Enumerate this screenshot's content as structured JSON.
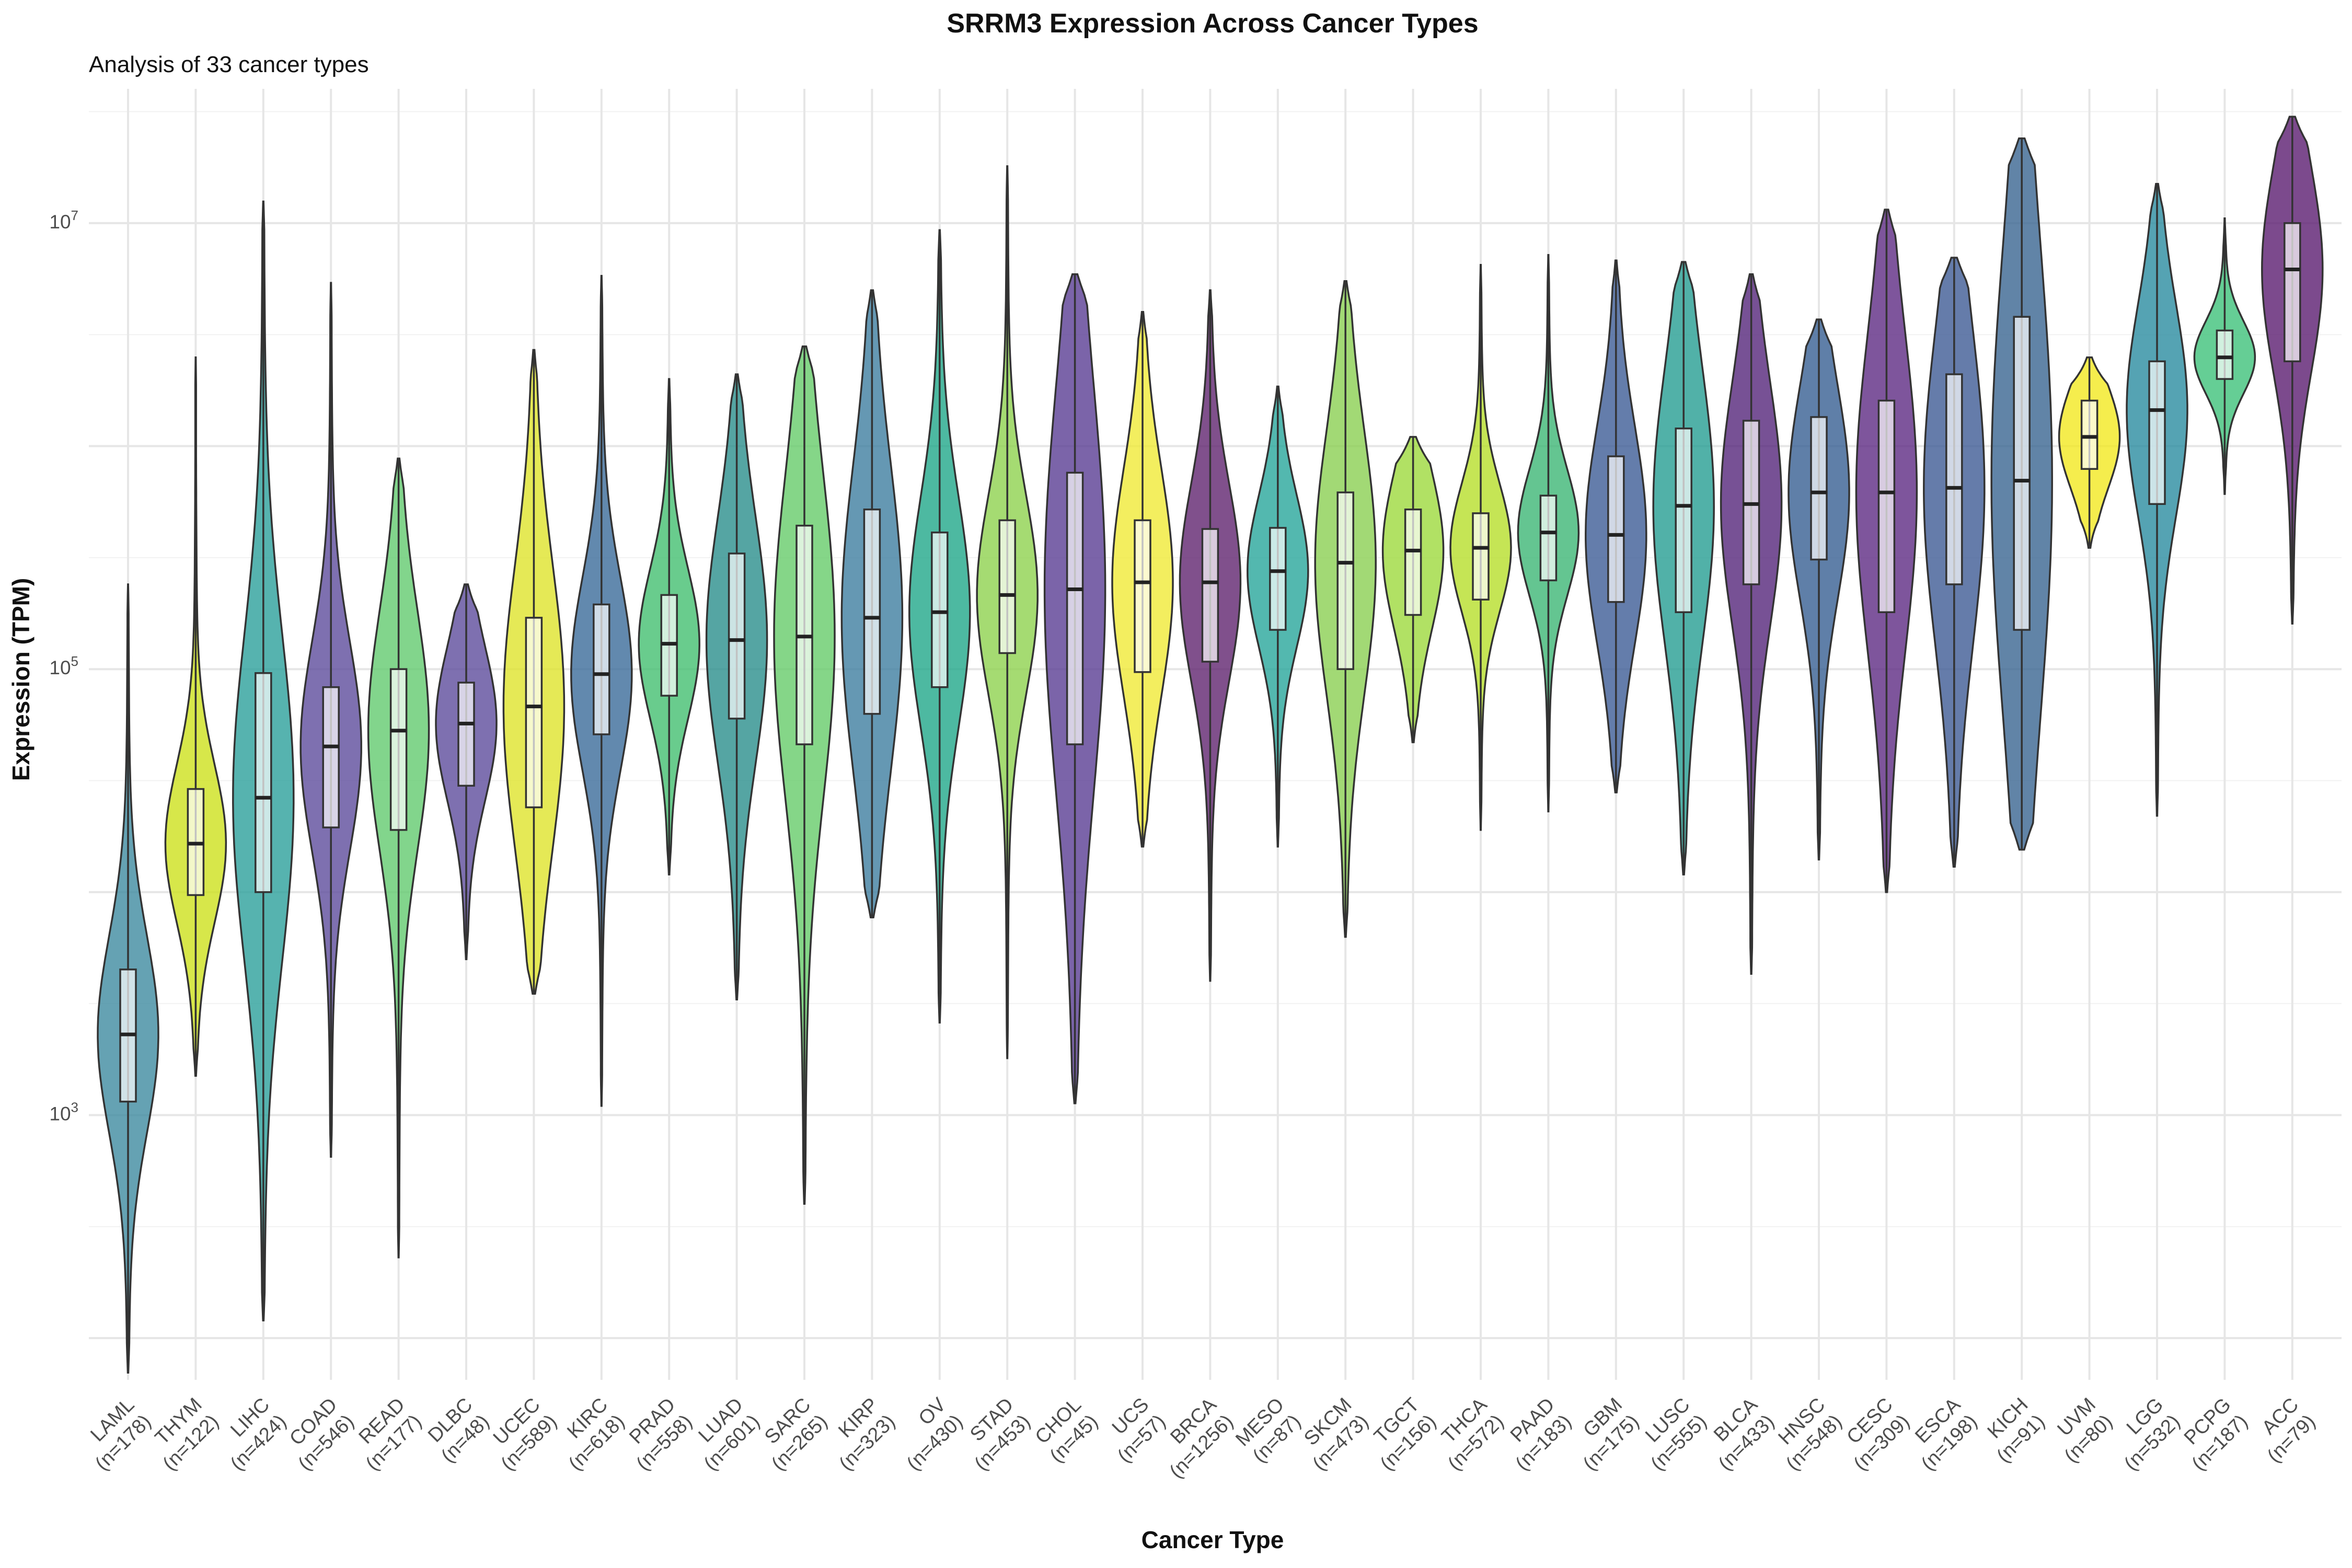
{
  "chart_data": {
    "type": "violin",
    "title": "SRRM3 Expression Across Cancer Types",
    "subtitle": "Analysis of 33 cancer types",
    "xlabel": "Cancer Type",
    "ylabel": "Expression (TPM)",
    "y_scale": "log10",
    "ylim": [
      65,
      40000000
    ],
    "y_ticks": [
      {
        "value": 1000,
        "base": "10",
        "exp": "3"
      },
      {
        "value": 100000,
        "base": "10",
        "exp": "5"
      },
      {
        "value": 10000000,
        "base": "10",
        "exp": "7"
      }
    ],
    "grid": true,
    "legend": "none",
    "categories": [
      {
        "name": "LAML",
        "n": "(n=178)",
        "color": "#3e8ba0",
        "min": 70,
        "q1": 1150,
        "median": 2300,
        "q3": 4500,
        "max": 240000
      },
      {
        "name": "THYM",
        "n": "(n=122)",
        "color": "#cde11d",
        "min": 1500,
        "q1": 9700,
        "median": 16500,
        "q3": 29000,
        "max": 2500000
      },
      {
        "name": "LIHC",
        "n": "(n=424)",
        "color": "#2ca09b",
        "min": 120,
        "q1": 10000,
        "median": 26500,
        "q3": 96000,
        "max": 12500000
      },
      {
        "name": "COAD",
        "n": "(n=546)",
        "color": "#5e4c9c",
        "min": 650,
        "q1": 19500,
        "median": 45000,
        "q3": 83000,
        "max": 5400000
      },
      {
        "name": "READ",
        "n": "(n=177)",
        "color": "#63cb6f",
        "min": 230,
        "q1": 19000,
        "median": 53000,
        "q3": 100000,
        "max": 880000
      },
      {
        "name": "DLBC",
        "n": "(n=48)",
        "color": "#5e4c9c",
        "min": 5000,
        "q1": 30000,
        "median": 57000,
        "q3": 87000,
        "max": 240000
      },
      {
        "name": "UCEC",
        "n": "(n=589)",
        "color": "#dfe42c",
        "min": 3500,
        "q1": 24000,
        "median": 68000,
        "q3": 170000,
        "max": 2700000
      },
      {
        "name": "KIRC",
        "n": "(n=618)",
        "color": "#3b6b9a",
        "min": 1100,
        "q1": 51000,
        "median": 95000,
        "q3": 195000,
        "max": 5800000
      },
      {
        "name": "PRAD",
        "n": "(n=558)",
        "color": "#43bf71",
        "min": 12000,
        "q1": 76000,
        "median": 130000,
        "q3": 215000,
        "max": 2000000
      },
      {
        "name": "LUAD",
        "n": "(n=601)",
        "color": "#2a8e8c",
        "min": 3300,
        "q1": 60000,
        "median": 135000,
        "q3": 330000,
        "max": 2100000
      },
      {
        "name": "SARC",
        "n": "(n=265)",
        "color": "#67cc6a",
        "min": 400,
        "q1": 46000,
        "median": 140000,
        "q3": 440000,
        "max": 2800000
      },
      {
        "name": "KIRP",
        "n": "(n=323)",
        "color": "#3e7ea0",
        "min": 7700,
        "q1": 63000,
        "median": 170000,
        "q3": 520000,
        "max": 5000000
      },
      {
        "name": "OV",
        "n": "(n=430)",
        "color": "#20a889",
        "min": 2600,
        "q1": 83000,
        "median": 180000,
        "q3": 410000,
        "max": 9300000
      },
      {
        "name": "STAD",
        "n": "(n=453)",
        "color": "#8fd24f",
        "min": 1800,
        "q1": 118000,
        "median": 215000,
        "q3": 465000,
        "max": 18000000
      },
      {
        "name": "CHOL",
        "n": "(n=45)",
        "color": "#5a3d94",
        "min": 1130,
        "q1": 46000,
        "median": 228000,
        "q3": 760000,
        "max": 5900000
      },
      {
        "name": "UCS",
        "n": "(n=57)",
        "color": "#f0ea37",
        "min": 16000,
        "q1": 97000,
        "median": 245000,
        "q3": 465000,
        "max": 4000000
      },
      {
        "name": "BRCA",
        "n": "(n=1256)",
        "color": "#60246f",
        "min": 4000,
        "q1": 108000,
        "median": 245000,
        "q3": 425000,
        "max": 5000000
      },
      {
        "name": "MESO",
        "n": "(n=87)",
        "color": "#28a69b",
        "min": 16000,
        "q1": 150000,
        "median": 275000,
        "q3": 430000,
        "max": 1850000
      },
      {
        "name": "SKCM",
        "n": "(n=473)",
        "color": "#8bd052",
        "min": 6300,
        "q1": 100000,
        "median": 300000,
        "q3": 620000,
        "max": 5500000
      },
      {
        "name": "TGCT",
        "n": "(n=156)",
        "color": "#9ed93d",
        "min": 47000,
        "q1": 175000,
        "median": 340000,
        "q3": 520000,
        "max": 1100000
      },
      {
        "name": "THCA",
        "n": "(n=572)",
        "color": "#b6de2b",
        "min": 19000,
        "q1": 205000,
        "median": 350000,
        "q3": 500000,
        "max": 6500000
      },
      {
        "name": "PAAD",
        "n": "(n=183)",
        "color": "#3db676",
        "min": 23000,
        "q1": 250000,
        "median": 410000,
        "q3": 600000,
        "max": 7200000
      },
      {
        "name": "GBM",
        "n": "(n=175)",
        "color": "#3d5c96",
        "min": 28000,
        "q1": 200000,
        "median": 400000,
        "q3": 900000,
        "max": 6800000
      },
      {
        "name": "LUSC",
        "n": "(n=555)",
        "color": "#259e92",
        "min": 12000,
        "q1": 180000,
        "median": 540000,
        "q3": 1200000,
        "max": 6700000
      },
      {
        "name": "BLCA",
        "n": "(n=433)",
        "color": "#55267a",
        "min": 4300,
        "q1": 240000,
        "median": 550000,
        "q3": 1300000,
        "max": 5900000
      },
      {
        "name": "HNSC",
        "n": "(n=548)",
        "color": "#375f92",
        "min": 14000,
        "q1": 310000,
        "median": 620000,
        "q3": 1350000,
        "max": 3700000
      },
      {
        "name": "CESC",
        "n": "(n=309)",
        "color": "#5e2a83",
        "min": 10000,
        "q1": 180000,
        "median": 620000,
        "q3": 1600000,
        "max": 11500000
      },
      {
        "name": "ESCA",
        "n": "(n=198)",
        "color": "#3e5b95",
        "min": 13000,
        "q1": 240000,
        "median": 650000,
        "q3": 2100000,
        "max": 7000000
      },
      {
        "name": "KICH",
        "n": "(n=91)",
        "color": "#3a6591",
        "min": 15500,
        "q1": 150000,
        "median": 700000,
        "q3": 3800000,
        "max": 24000000
      },
      {
        "name": "UVM",
        "n": "(n=80)",
        "color": "#f3e820",
        "min": 350000,
        "q1": 790000,
        "median": 1100000,
        "q3": 1600000,
        "max": 2500000
      },
      {
        "name": "LGG",
        "n": "(n=532)",
        "color": "#2b8ca0",
        "min": 22000,
        "q1": 550000,
        "median": 1450000,
        "q3": 2400000,
        "max": 15000000
      },
      {
        "name": "PCPG",
        "n": "(n=187)",
        "color": "#3ec27a",
        "min": 610000,
        "q1": 2000000,
        "median": 2500000,
        "q3": 3300000,
        "max": 10500000
      },
      {
        "name": "ACC",
        "n": "(n=79)",
        "color": "#5b1d71",
        "min": 160000,
        "q1": 2400000,
        "median": 6200000,
        "q3": 10000000,
        "max": 30000000
      }
    ]
  }
}
